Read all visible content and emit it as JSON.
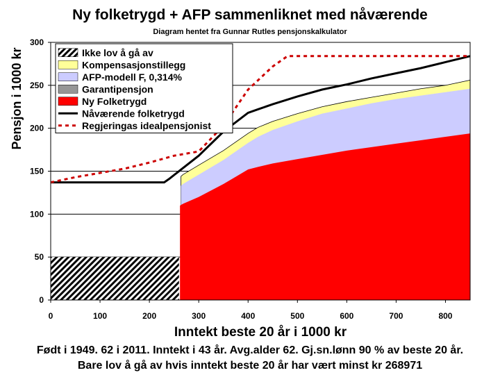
{
  "chart_data": {
    "type": "area",
    "title": "Ny folketrygd + AFP sammenliknet med nåværende",
    "subtitle": "Diagram hentet fra Gunnar Rutles pensjonskalkulator",
    "xlabel": "Inntekt beste 20 år i 1000 kr",
    "ylabel": "Pensjon i 1000 kr",
    "xlim": [
      0,
      850
    ],
    "ylim": [
      0,
      300
    ],
    "xticks": [
      0,
      100,
      200,
      300,
      400,
      500,
      600,
      700,
      800
    ],
    "yticks": [
      0,
      50,
      100,
      150,
      200,
      250,
      300
    ],
    "legend_position": "top-left",
    "grid": "horizontal",
    "colors": {
      "ikke_lov": "#000000",
      "kompensasjon": "#ffff99",
      "afp": "#ccccff",
      "garanti": "#969696",
      "ny_folketrygd": "#ff0000",
      "navaerende": "#000000",
      "idealpensjonist": "#cc0000"
    },
    "legend": [
      {
        "key": "ikke_lov",
        "label": "Ikke lov å gå av",
        "style": "hatch"
      },
      {
        "key": "kompensasjon",
        "label": "Kompensasjonstillegg",
        "style": "fill"
      },
      {
        "key": "afp",
        "label": "AFP-modell F, 0,314%",
        "style": "fill"
      },
      {
        "key": "garanti",
        "label": "Garantipensjon",
        "style": "fill"
      },
      {
        "key": "ny_folketrygd",
        "label": "Ny Folketrygd",
        "style": "fill"
      },
      {
        "key": "navaerende",
        "label": "Nåværende folketrygd",
        "style": "line"
      },
      {
        "key": "idealpensjonist",
        "label": "Regjeringas idealpensjonist",
        "style": "dashed"
      }
    ],
    "series": {
      "ikke_lov": {
        "x": [
          0,
          260
        ],
        "y": [
          50,
          50
        ]
      },
      "ny_folketrygd": {
        "x": [
          262,
          268,
          300,
          350,
          400,
          420,
          450,
          500,
          550,
          600,
          650,
          700,
          750,
          800,
          850
        ],
        "y": [
          110,
          112,
          120,
          135,
          152,
          155,
          159,
          164,
          169,
          174,
          178,
          182,
          186,
          190,
          194
        ]
      },
      "afp": {
        "x": [
          264,
          268,
          300,
          350,
          400,
          420,
          450,
          500,
          550,
          600,
          650,
          700,
          750,
          800,
          850
        ],
        "y": [
          133,
          135,
          146,
          163,
          183,
          190,
          198,
          208,
          217,
          223,
          229,
          234,
          238,
          242,
          246
        ]
      },
      "kompensasjon": {
        "x": [
          264,
          268,
          300,
          350,
          400,
          420,
          450,
          500,
          550,
          600,
          650,
          700,
          750,
          800,
          850
        ],
        "y": [
          144,
          146,
          157,
          174,
          194,
          201,
          208,
          217,
          225,
          231,
          236,
          241,
          246,
          250,
          256
        ]
      },
      "navaerende": {
        "x": [
          0,
          230,
          240,
          300,
          350,
          400,
          420,
          450,
          500,
          550,
          600,
          650,
          700,
          750,
          800,
          850
        ],
        "y": [
          137,
          137,
          141,
          168,
          196,
          218,
          222,
          228,
          237,
          245,
          251,
          258,
          264,
          270,
          277,
          284
        ]
      },
      "idealpensjonist": {
        "x": [
          0,
          50,
          100,
          150,
          200,
          250,
          300,
          350,
          400,
          450,
          480,
          550,
          650,
          750,
          850
        ],
        "y": [
          137,
          143,
          148,
          153,
          160,
          168,
          173,
          203,
          245,
          272,
          284,
          284,
          284,
          284,
          284
        ]
      }
    }
  },
  "footer": {
    "line1": "Født i 1949. 62 i 2011. Inntekt i 43 år. Avg.alder 62. Gj.sn.lønn 90 % av beste 20 år.",
    "line2": "Bare lov å gå av hvis inntekt beste 20 år har vært minst kr 268971"
  }
}
